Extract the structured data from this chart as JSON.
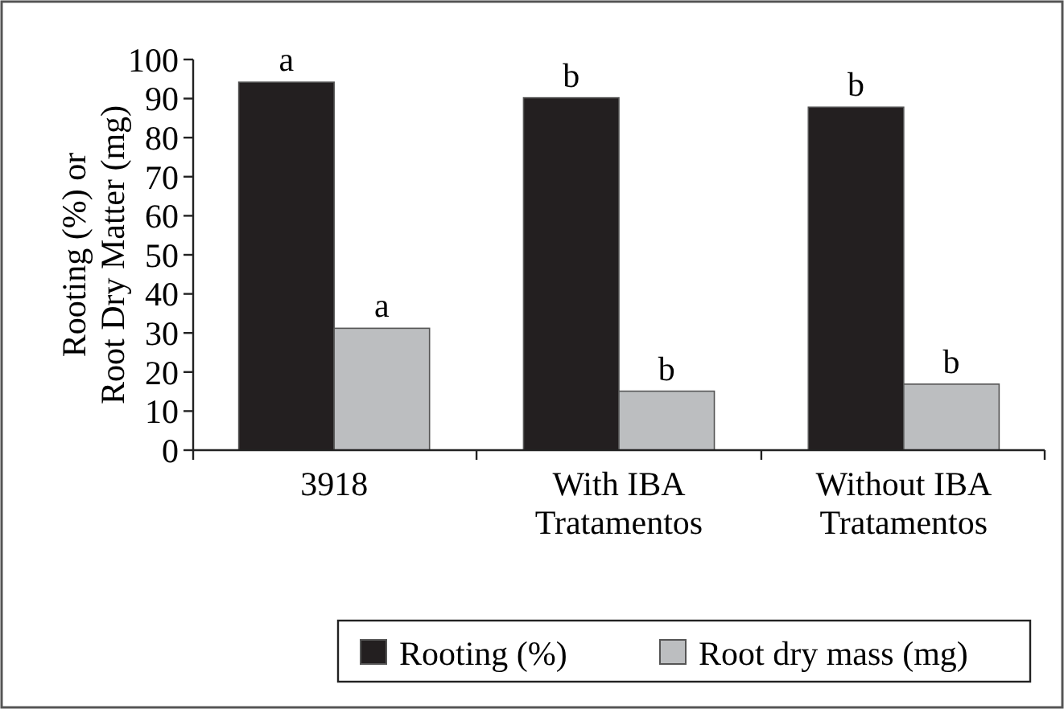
{
  "chart_data": {
    "type": "bar",
    "ylabel": "Rooting (%) or\nRoot Dry Matter (mg)",
    "categories": [
      "3918",
      "With IBA\nTratamentos",
      "Without IBA\nTratamentos"
    ],
    "series": [
      {
        "name": "Rooting (%)",
        "color": "#231f20",
        "values": [
          94.2,
          90.2,
          87.8
        ],
        "value_labels": [
          "a",
          "b",
          "b"
        ]
      },
      {
        "name": "Root dry mass (mg)",
        "color": "#bcbec0",
        "values": [
          31.2,
          15.1,
          16.9
        ],
        "value_labels": [
          "a",
          "b",
          "b"
        ]
      }
    ],
    "ylim": [
      0,
      100
    ],
    "yticks": [
      0,
      10,
      20,
      30,
      40,
      50,
      60,
      70,
      80,
      90,
      100
    ],
    "legend": "bottom",
    "grid": false
  }
}
